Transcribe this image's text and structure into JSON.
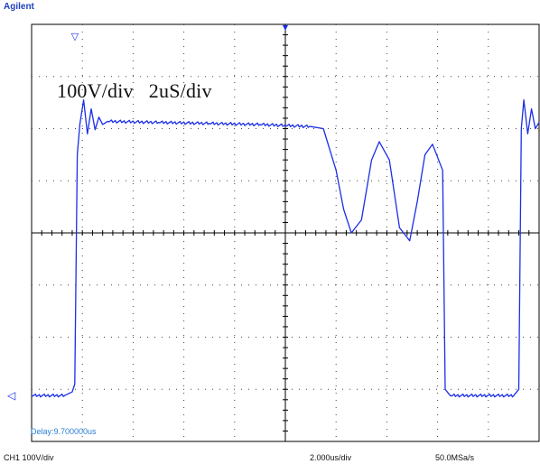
{
  "brand": "Agilent",
  "annotation": "100V/div   2uS/div",
  "delay_readout": "Delay:9.700000us",
  "footer": {
    "channel": "CH1 100V/div",
    "timebase": "2.000us/div",
    "sample_rate": "50.0MSa/s"
  },
  "colors": {
    "trace": "#1a2ee6",
    "grid": "#000000",
    "brand": "#1f3fbf",
    "delay": "#2a7fd4"
  },
  "chart_data": {
    "type": "line",
    "title": "",
    "xlabel": "",
    "ylabel": "",
    "x_divisions": 10,
    "y_divisions": 8,
    "volts_per_div": 100,
    "us_per_div": 2,
    "xlim_us": [
      -10,
      10
    ],
    "ylim_V": [
      -400,
      400
    ],
    "grid": true,
    "series": [
      {
        "values_us_V": [
          [
            -10,
            -312
          ],
          [
            -8.7,
            -312
          ],
          [
            -8.4,
            -305
          ],
          [
            -8.3,
            -290
          ],
          [
            -8.2,
            150
          ],
          [
            -8.1,
            208
          ],
          [
            -7.95,
            255
          ],
          [
            -7.8,
            190
          ],
          [
            -7.65,
            238
          ],
          [
            -7.5,
            198
          ],
          [
            -7.35,
            222
          ],
          [
            -7.2,
            208
          ],
          [
            -7.0,
            214
          ],
          [
            -5,
            212
          ],
          [
            -3,
            210
          ],
          [
            -1,
            208
          ],
          [
            0,
            206
          ],
          [
            1,
            204
          ],
          [
            1.5,
            200
          ],
          [
            2.0,
            120
          ],
          [
            2.3,
            45
          ],
          [
            2.6,
            0
          ],
          [
            3.0,
            25
          ],
          [
            3.4,
            140
          ],
          [
            3.7,
            175
          ],
          [
            4.1,
            140
          ],
          [
            4.5,
            10
          ],
          [
            4.9,
            -15
          ],
          [
            5.2,
            60
          ],
          [
            5.5,
            150
          ],
          [
            5.8,
            170
          ],
          [
            6.2,
            120
          ],
          [
            6.3,
            -300
          ],
          [
            6.5,
            -312
          ],
          [
            9.0,
            -312
          ],
          [
            9.2,
            -300
          ],
          [
            9.3,
            200
          ],
          [
            9.4,
            255
          ],
          [
            9.55,
            190
          ],
          [
            9.7,
            238
          ],
          [
            9.85,
            200
          ],
          [
            10,
            212
          ]
        ]
      }
    ],
    "markers": {
      "trigger_top": "▽",
      "ground_left": "◁"
    }
  }
}
